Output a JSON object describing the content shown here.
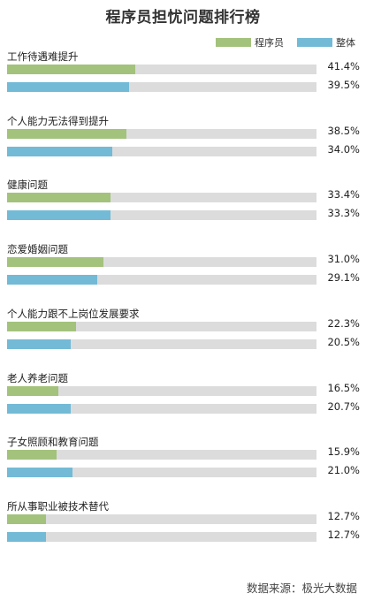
{
  "chart_data": {
    "type": "bar",
    "title": "程序员担忧问题排行榜",
    "categories": [
      "工作待遇难提升",
      "个人能力无法得到提升",
      "健康问题",
      "恋爱婚姻问题",
      "个人能力跟不上岗位发展要求",
      "老人养老问题",
      "子女照顾和教育问题",
      "所从事职业被技术替代"
    ],
    "series": [
      {
        "name": "程序员",
        "color": "#a3c27c",
        "values": [
          41.4,
          38.5,
          33.4,
          31.0,
          22.3,
          16.5,
          15.9,
          12.7
        ],
        "labels": [
          "41.4%",
          "38.5%",
          "33.4%",
          "31.0%",
          "22.3%",
          "16.5%",
          "15.9%",
          "12.7%"
        ]
      },
      {
        "name": "整体",
        "color": "#73bad6",
        "values": [
          39.5,
          34.0,
          33.3,
          29.1,
          20.5,
          20.7,
          21.0,
          12.7
        ],
        "labels": [
          "39.5%",
          "34.0%",
          "33.3%",
          "29.1%",
          "20.5%",
          "20.7%",
          "21.0%",
          "12.7%"
        ]
      }
    ],
    "xlim": [
      0,
      100
    ],
    "track_color": "#dcdcdd",
    "legend_position": "top-right"
  },
  "source": "数据来源：极光大数据"
}
